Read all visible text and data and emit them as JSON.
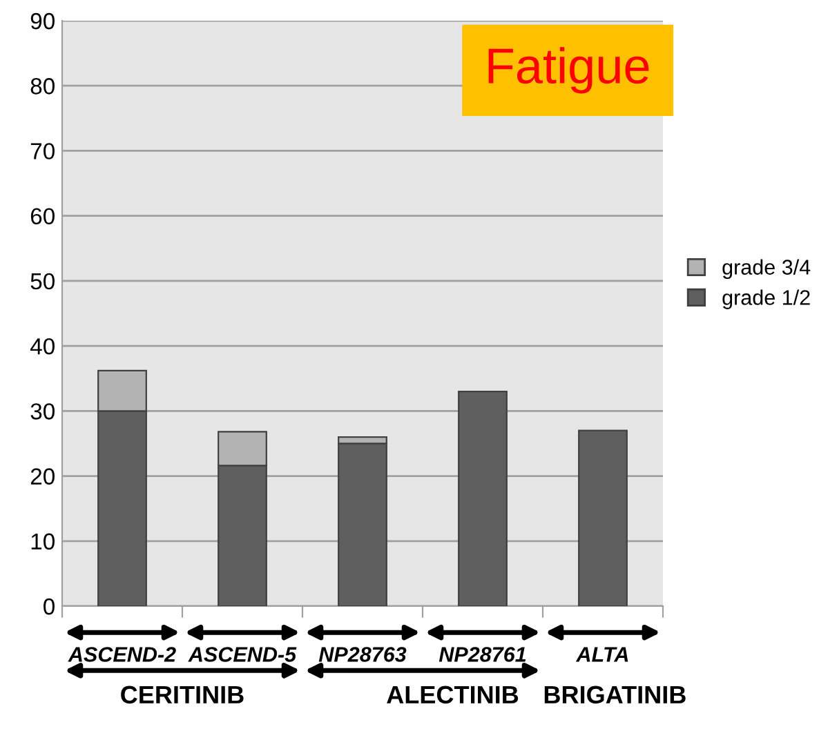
{
  "chart_data": {
    "type": "bar",
    "title": "Fatigue",
    "stacked": true,
    "categories": [
      "ASCEND-2",
      "ASCEND-5",
      "NP28763",
      "NP28761",
      "ALTA"
    ],
    "series": [
      {
        "name": "grade 1/2",
        "color": "#5f5f5f",
        "values": [
          30,
          21.6,
          25,
          33,
          27
        ]
      },
      {
        "name": "grade 3/4",
        "color": "#b3b3b3",
        "values": [
          6.2,
          5.2,
          1,
          null,
          null
        ]
      }
    ],
    "ylim": [
      0,
      90
    ],
    "yticks": [
      0,
      10,
      20,
      30,
      40,
      50,
      60,
      70,
      80,
      90
    ],
    "grid": "y",
    "legend": "right",
    "annotations": [
      "CERITINIB",
      "ALECTINIB",
      "BRIGATINIB"
    ]
  }
}
